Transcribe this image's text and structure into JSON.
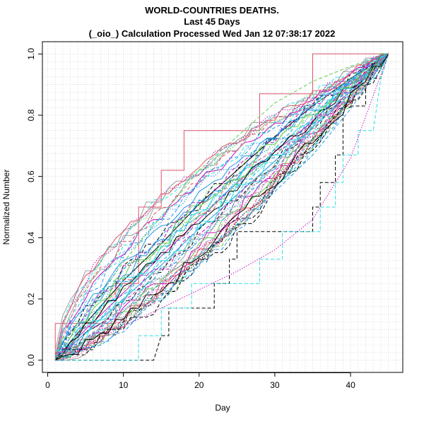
{
  "chart_data": {
    "type": "line",
    "title": [
      "WORLD-COUNTRIES DEATHS.",
      "Last 45 Days",
      "(_oio_) Calculation Processed  Wed Jan 12 07:38:17 2022"
    ],
    "xlabel": "Day",
    "ylabel": "Normalized Number",
    "xlim": [
      -0.7,
      46.9
    ],
    "ylim": [
      -0.04,
      1.04
    ],
    "x_ticks": [
      0,
      10,
      20,
      30,
      40
    ],
    "y_ticks": [
      "0.0",
      "0.2",
      "0.4",
      "0.6",
      "0.8",
      "1.0"
    ],
    "grid": true,
    "legend": "none",
    "series_note_count": 60,
    "palette": [
      "#000000",
      "#DF536B",
      "#61D04F",
      "#2297E6",
      "#28E2E5",
      "#CD0BBC",
      "#F5C710",
      "#9E9E9E"
    ],
    "series": [
      {
        "style": "dashed",
        "color": "#000000",
        "points": [
          [
            1,
            0
          ],
          [
            2,
            0
          ],
          [
            3,
            0
          ],
          [
            14,
            0
          ],
          [
            15,
            0.08
          ],
          [
            16,
            0.08
          ],
          [
            16,
            0.17
          ],
          [
            22,
            0.17
          ],
          [
            22,
            0.25
          ],
          [
            24,
            0.25
          ],
          [
            24,
            0.33
          ],
          [
            25,
            0.33
          ],
          [
            25,
            0.42
          ],
          [
            35,
            0.42
          ],
          [
            35,
            0.5
          ],
          [
            36,
            0.5
          ],
          [
            36,
            0.58
          ],
          [
            38,
            0.58
          ],
          [
            38,
            0.67
          ],
          [
            39,
            0.67
          ],
          [
            39,
            0.83
          ],
          [
            42,
            0.83
          ],
          [
            42,
            0.92
          ],
          [
            44,
            0.92
          ],
          [
            45,
            1
          ]
        ]
      },
      {
        "style": "dashed",
        "color": "#28E2E5",
        "points": [
          [
            1,
            0
          ],
          [
            12,
            0
          ],
          [
            12,
            0.08
          ],
          [
            15,
            0.08
          ],
          [
            15,
            0.17
          ],
          [
            19,
            0.17
          ],
          [
            19,
            0.25
          ],
          [
            28,
            0.25
          ],
          [
            28,
            0.33
          ],
          [
            31,
            0.33
          ],
          [
            31,
            0.42
          ],
          [
            36,
            0.42
          ],
          [
            36,
            0.5
          ],
          [
            38,
            0.5
          ],
          [
            38,
            0.58
          ],
          [
            39,
            0.58
          ],
          [
            39,
            0.67
          ],
          [
            41,
            0.67
          ],
          [
            41,
            0.75
          ],
          [
            43,
            0.75
          ],
          [
            44,
            0.92
          ],
          [
            45,
            1
          ]
        ]
      },
      {
        "style": "solid",
        "color": "#DF536B",
        "points": [
          [
            1,
            0
          ],
          [
            1,
            0.12
          ],
          [
            9,
            0.12
          ],
          [
            9,
            0.25
          ],
          [
            12,
            0.25
          ],
          [
            12,
            0.5
          ],
          [
            15,
            0.5
          ],
          [
            15,
            0.62
          ],
          [
            18,
            0.62
          ],
          [
            18,
            0.75
          ],
          [
            28,
            0.75
          ],
          [
            28,
            0.87
          ],
          [
            35,
            0.87
          ],
          [
            35,
            1
          ],
          [
            45,
            1
          ]
        ]
      },
      {
        "style": "solid",
        "color": "#2297E6",
        "points": [
          [
            1,
            0
          ],
          [
            5,
            0.09
          ],
          [
            10,
            0.2
          ],
          [
            15,
            0.31
          ],
          [
            20,
            0.43
          ],
          [
            25,
            0.54
          ],
          [
            30,
            0.65
          ],
          [
            35,
            0.76
          ],
          [
            40,
            0.88
          ],
          [
            45,
            1
          ]
        ]
      },
      {
        "style": "solid",
        "color": "#000000",
        "points": [
          [
            1,
            0
          ],
          [
            5,
            0.12
          ],
          [
            10,
            0.26
          ],
          [
            15,
            0.38
          ],
          [
            20,
            0.51
          ],
          [
            25,
            0.62
          ],
          [
            30,
            0.73
          ],
          [
            35,
            0.83
          ],
          [
            40,
            0.92
          ],
          [
            45,
            1
          ]
        ]
      },
      {
        "style": "dashed",
        "color": "#61D04F",
        "points": [
          [
            1,
            0
          ],
          [
            5,
            0.15
          ],
          [
            10,
            0.32
          ],
          [
            15,
            0.47
          ],
          [
            20,
            0.62
          ],
          [
            25,
            0.73
          ],
          [
            30,
            0.84
          ],
          [
            35,
            0.91
          ],
          [
            40,
            0.96
          ],
          [
            45,
            1
          ]
        ]
      },
      {
        "style": "dotted",
        "color": "#CD0BBC",
        "points": [
          [
            1,
            0
          ],
          [
            5,
            0.05
          ],
          [
            10,
            0.11
          ],
          [
            15,
            0.17
          ],
          [
            20,
            0.23
          ],
          [
            25,
            0.29
          ],
          [
            30,
            0.36
          ],
          [
            35,
            0.46
          ],
          [
            40,
            0.66
          ],
          [
            45,
            1
          ]
        ]
      },
      {
        "style": "dashed",
        "color": "#2297E6",
        "points": [
          [
            1,
            0
          ],
          [
            5,
            0.07
          ],
          [
            10,
            0.16
          ],
          [
            15,
            0.25
          ],
          [
            20,
            0.34
          ],
          [
            25,
            0.44
          ],
          [
            30,
            0.55
          ],
          [
            35,
            0.67
          ],
          [
            40,
            0.82
          ],
          [
            45,
            1
          ]
        ]
      },
      {
        "style": "solid",
        "color": "#CD0BBC",
        "points": [
          [
            1,
            0
          ],
          [
            5,
            0.1
          ],
          [
            10,
            0.22
          ],
          [
            15,
            0.34
          ],
          [
            20,
            0.46
          ],
          [
            25,
            0.58
          ],
          [
            30,
            0.68
          ],
          [
            35,
            0.78
          ],
          [
            40,
            0.9
          ],
          [
            45,
            1
          ]
        ]
      },
      {
        "style": "dotted",
        "color": "#9E9E9E",
        "points": [
          [
            1,
            0
          ],
          [
            5,
            0.11
          ],
          [
            10,
            0.24
          ],
          [
            15,
            0.35
          ],
          [
            20,
            0.47
          ],
          [
            25,
            0.57
          ],
          [
            30,
            0.67
          ],
          [
            35,
            0.77
          ],
          [
            40,
            0.88
          ],
          [
            45,
            1
          ]
        ]
      }
    ]
  }
}
